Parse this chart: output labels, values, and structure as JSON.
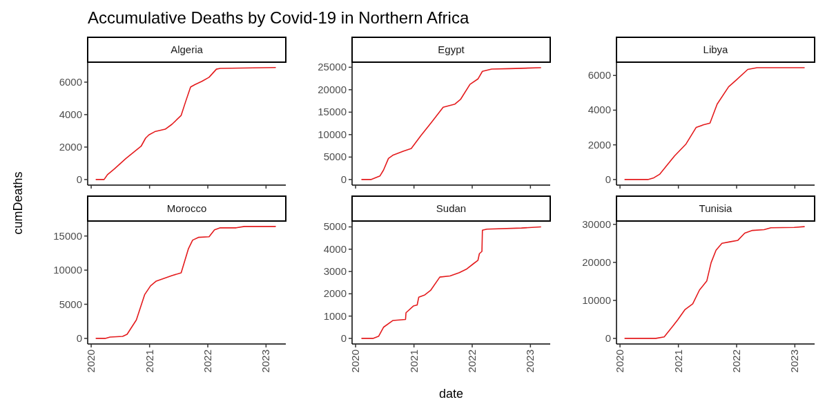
{
  "chart_data": [
    {
      "type": "line",
      "title": "Algeria",
      "annotations": [
        "Accumulative Deaths by Covid-19 in Northern Africa"
      ],
      "ylabel": "cumDeaths",
      "tick_labels": "y",
      "xlim": [
        "2019-12-10",
        "2023-05-05"
      ],
      "xticks": [
        "2020",
        "2021",
        "2022",
        "2023"
      ],
      "ylim": [
        -344,
        7231
      ],
      "yticks": [
        0,
        2000,
        4000,
        6000
      ],
      "x": [
        "2020-02-01",
        "2020-03-22",
        "2020-04-12",
        "2020-05-25",
        "2020-08-06",
        "2020-11-09",
        "2020-12-07",
        "2020-12-28",
        "2021-02-03",
        "2021-04-09",
        "2021-05-21",
        "2021-07-18",
        "2021-08-15",
        "2021-09-15",
        "2021-10-12",
        "2021-11-25",
        "2022-01-09",
        "2022-02-24",
        "2022-03-20",
        "2023-03-01"
      ],
      "series": [
        {
          "color": "#e41a1c",
          "values": [
            0,
            0,
            300,
            650,
            1300,
            2050,
            2550,
            2750,
            2950,
            3100,
            3400,
            3950,
            4800,
            5700,
            5850,
            6050,
            6300,
            6800,
            6850,
            6900
          ]
        }
      ]
    },
    {
      "type": "line",
      "title": "Egypt",
      "tick_labels": "y",
      "xlim": [
        "2019-12-10",
        "2023-05-05"
      ],
      "xticks": [
        "2020",
        "2021",
        "2022",
        "2023"
      ],
      "ylim": [
        -1245,
        26135
      ],
      "yticks": [
        0,
        5000,
        10000,
        15000,
        20000,
        25000
      ],
      "x": [
        "2020-02-09",
        "2020-04-06",
        "2020-06-02",
        "2020-06-24",
        "2020-07-25",
        "2020-08-21",
        "2020-10-25",
        "2020-12-15",
        "2021-02-12",
        "2021-04-22",
        "2021-07-03",
        "2021-09-15",
        "2021-10-21",
        "2021-12-18",
        "2022-02-06",
        "2022-03-06",
        "2022-05-03",
        "2022-08-24",
        "2023-03-06"
      ],
      "series": [
        {
          "color": "#e41a1c",
          "values": [
            0,
            0,
            800,
            2100,
            4700,
            5400,
            6300,
            6900,
            9700,
            12800,
            16100,
            16800,
            17900,
            21200,
            22400,
            24100,
            24600,
            24700,
            24900
          ]
        }
      ]
    },
    {
      "type": "line",
      "title": "Libya",
      "tick_labels": "y",
      "xlim": [
        "2019-12-10",
        "2023-05-05"
      ],
      "xticks": [
        "2020",
        "2021",
        "2022",
        "2023"
      ],
      "ylim": [
        -322,
        6767
      ],
      "yticks": [
        0,
        2000,
        4000,
        6000
      ],
      "x": [
        "2020-02-01",
        "2020-06-24",
        "2020-07-31",
        "2020-09-05",
        "2020-12-07",
        "2021-02-18",
        "2021-04-22",
        "2021-06-06",
        "2021-07-18",
        "2021-09-01",
        "2021-11-12",
        "2021-12-31",
        "2022-03-12",
        "2022-05-09",
        "2023-03-01"
      ],
      "series": [
        {
          "color": "#e41a1c",
          "values": [
            0,
            0,
            100,
            300,
            1350,
            2050,
            3000,
            3150,
            3250,
            4350,
            5350,
            5750,
            6350,
            6450,
            6450
          ]
        }
      ]
    },
    {
      "type": "line",
      "title": "Morocco",
      "xlim": [
        "2019-12-10",
        "2023-05-05"
      ],
      "xticks": [
        "2020",
        "2021",
        "2022",
        "2023"
      ],
      "ylim": [
        -819,
        17195
      ],
      "yticks": [
        0,
        5000,
        10000,
        15000
      ],
      "x": [
        "2020-02-01",
        "2020-03-29",
        "2020-04-28",
        "2020-07-16",
        "2020-08-13",
        "2020-10-10",
        "2020-12-01",
        "2021-01-07",
        "2021-02-12",
        "2021-05-21",
        "2021-07-18",
        "2021-09-01",
        "2021-09-28",
        "2021-11-03",
        "2022-01-09",
        "2022-02-12",
        "2022-03-20",
        "2022-06-28",
        "2022-08-18",
        "2023-03-01"
      ],
      "series": [
        {
          "color": "#e41a1c",
          "values": [
            0,
            0,
            200,
            300,
            600,
            2700,
            6400,
            7700,
            8400,
            9200,
            9600,
            13100,
            14400,
            14800,
            14900,
            15900,
            16200,
            16200,
            16400,
            16400
          ]
        }
      ]
    },
    {
      "type": "line",
      "title": "Sudan",
      "xlabel": "date",
      "xlim": [
        "2019-12-10",
        "2023-05-05"
      ],
      "xticks": [
        "2020",
        "2021",
        "2022",
        "2023"
      ],
      "ylim": [
        -251,
        5263
      ],
      "yticks": [
        0,
        1000,
        2000,
        3000,
        4000,
        5000
      ],
      "x": [
        "2020-02-09",
        "2020-04-19",
        "2020-05-25",
        "2020-06-24",
        "2020-08-21",
        "2020-11-09",
        "2020-11-12",
        "2020-12-28",
        "2021-01-21",
        "2021-01-31",
        "2021-03-10",
        "2021-04-15",
        "2021-06-12",
        "2021-08-15",
        "2021-10-12",
        "2021-11-25",
        "2022-01-09",
        "2022-02-06",
        "2022-02-15",
        "2022-03-03",
        "2022-03-06",
        "2022-04-03",
        "2022-11-06",
        "2023-03-06"
      ],
      "series": [
        {
          "color": "#e41a1c",
          "values": [
            0,
            0,
            100,
            500,
            800,
            850,
            1150,
            1450,
            1500,
            1850,
            1950,
            2150,
            2750,
            2800,
            2950,
            3100,
            3350,
            3500,
            3800,
            3900,
            4850,
            4900,
            4950,
            5000
          ]
        }
      ]
    },
    {
      "type": "line",
      "title": "Tunisia",
      "xlim": [
        "2019-12-10",
        "2023-05-05"
      ],
      "xticks": [
        "2020",
        "2021",
        "2022",
        "2023"
      ],
      "ylim": [
        -1470,
        30874
      ],
      "yticks": [
        0,
        10000,
        20000,
        30000
      ],
      "x": [
        "2020-02-01",
        "2020-08-13",
        "2020-10-04",
        "2020-11-25",
        "2020-12-28",
        "2021-02-12",
        "2021-04-01",
        "2021-05-13",
        "2021-06-28",
        "2021-07-25",
        "2021-08-25",
        "2021-10-01",
        "2021-11-19",
        "2022-01-09",
        "2022-02-21",
        "2022-04-10",
        "2022-06-22",
        "2022-08-04",
        "2022-12-28",
        "2023-03-01"
      ],
      "series": [
        {
          "color": "#e41a1c",
          "values": [
            0,
            0,
            400,
            3100,
            4900,
            7600,
            9100,
            12700,
            15100,
            19900,
            23200,
            25000,
            25400,
            25800,
            27700,
            28400,
            28600,
            29100,
            29200,
            29400
          ]
        }
      ]
    }
  ]
}
